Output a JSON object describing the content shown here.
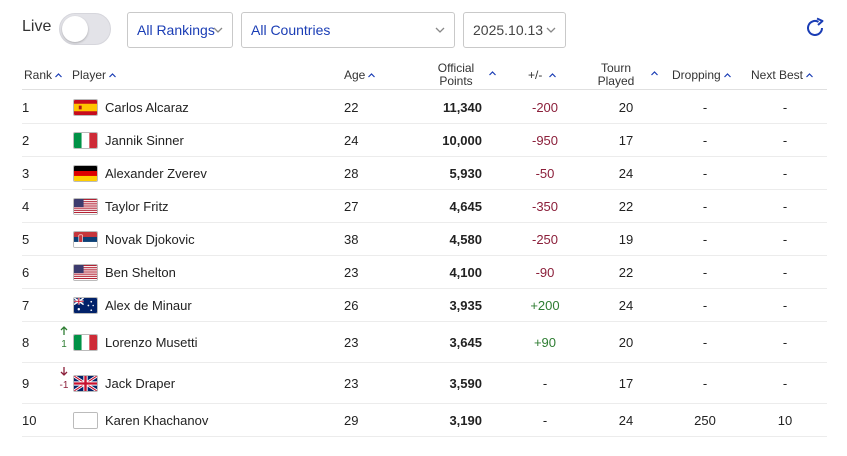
{
  "controls": {
    "live_label": "Live",
    "rankings_select": "All Rankings",
    "countries_select": "All Countries",
    "date_select": "2025.10.13"
  },
  "columns": {
    "rank": "Rank",
    "player": "Player",
    "age": "Age",
    "points_line1": "Official",
    "points_line2": "Points",
    "diff": "+/-",
    "played_line1": "Tourn",
    "played_line2": "Played",
    "dropping": "Dropping",
    "next_best": "Next Best"
  },
  "colors": {
    "accent": "#1a3db5",
    "negative": "#8b1f3a",
    "positive": "#2e7d32"
  },
  "rows": [
    {
      "rank": "1",
      "flag": "spain-flag",
      "name": "Carlos Alcaraz",
      "age": "22",
      "points": "11,340",
      "diff": "-200",
      "diff_type": "neg",
      "played": "20",
      "dropping": "-",
      "next_best": "-",
      "move": "",
      "move_dir": ""
    },
    {
      "rank": "2",
      "flag": "italy-flag",
      "name": "Jannik Sinner",
      "age": "24",
      "points": "10,000",
      "diff": "-950",
      "diff_type": "neg",
      "played": "17",
      "dropping": "-",
      "next_best": "-",
      "move": "",
      "move_dir": ""
    },
    {
      "rank": "3",
      "flag": "germany-flag",
      "name": "Alexander Zverev",
      "age": "28",
      "points": "5,930",
      "diff": "-50",
      "diff_type": "neg",
      "played": "24",
      "dropping": "-",
      "next_best": "-",
      "move": "",
      "move_dir": ""
    },
    {
      "rank": "4",
      "flag": "usa-flag",
      "name": "Taylor Fritz",
      "age": "27",
      "points": "4,645",
      "diff": "-350",
      "diff_type": "neg",
      "played": "22",
      "dropping": "-",
      "next_best": "-",
      "move": "",
      "move_dir": ""
    },
    {
      "rank": "5",
      "flag": "serbia-flag",
      "name": "Novak Djokovic",
      "age": "38",
      "points": "4,580",
      "diff": "-250",
      "diff_type": "neg",
      "played": "19",
      "dropping": "-",
      "next_best": "-",
      "move": "",
      "move_dir": ""
    },
    {
      "rank": "6",
      "flag": "usa-flag",
      "name": "Ben Shelton",
      "age": "23",
      "points": "4,100",
      "diff": "-90",
      "diff_type": "neg",
      "played": "22",
      "dropping": "-",
      "next_best": "-",
      "move": "",
      "move_dir": ""
    },
    {
      "rank": "7",
      "flag": "australia-flag",
      "name": "Alex de Minaur",
      "age": "26",
      "points": "3,935",
      "diff": "+200",
      "diff_type": "pos",
      "played": "24",
      "dropping": "-",
      "next_best": "-",
      "move": "",
      "move_dir": ""
    },
    {
      "rank": "8",
      "flag": "italy-flag",
      "name": "Lorenzo Musetti",
      "age": "23",
      "points": "3,645",
      "diff": "+90",
      "diff_type": "pos",
      "played": "20",
      "dropping": "-",
      "next_best": "-",
      "move": "1",
      "move_dir": "up"
    },
    {
      "rank": "9",
      "flag": "uk-flag",
      "name": "Jack Draper",
      "age": "23",
      "points": "3,590",
      "diff": "-",
      "diff_type": "none",
      "played": "17",
      "dropping": "-",
      "next_best": "-",
      "move": "-1",
      "move_dir": "down"
    },
    {
      "rank": "10",
      "flag": "blank-flag",
      "name": "Karen Khachanov",
      "age": "29",
      "points": "3,190",
      "diff": "-",
      "diff_type": "none",
      "played": "24",
      "dropping": "250",
      "next_best": "10",
      "move": "",
      "move_dir": ""
    }
  ]
}
